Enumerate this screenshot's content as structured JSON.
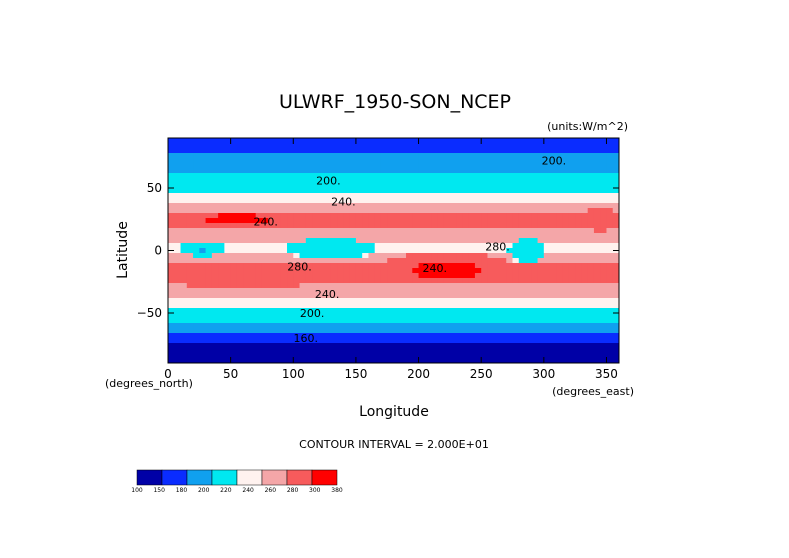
{
  "chart_data": {
    "type": "heatmap",
    "title": "ULWRF_1950-SON_NCEP",
    "units": "(units:W/m^2)",
    "xlabel": "Longitude",
    "ylabel": "Latitude",
    "x_units": "(degrees_east)",
    "y_units": "(degrees_north)",
    "xlim": [
      0,
      360
    ],
    "ylim": [
      -90,
      90
    ],
    "x_ticks": [
      {
        "value": 0,
        "label": "0"
      },
      {
        "value": 50,
        "label": "50"
      },
      {
        "value": 100,
        "label": "100"
      },
      {
        "value": 150,
        "label": "150"
      },
      {
        "value": 200,
        "label": "200"
      },
      {
        "value": 250,
        "label": "250"
      },
      {
        "value": 300,
        "label": "300"
      },
      {
        "value": 350,
        "label": "350"
      }
    ],
    "y_ticks": [
      {
        "value": 50,
        "label": "50"
      },
      {
        "value": 0,
        "label": "0"
      },
      {
        "value": -50,
        "label": "−50"
      }
    ],
    "contour_interval": "CONTOUR INTERVAL = 2.000E+01",
    "contour_labels": [
      {
        "lon": 128,
        "lat": 53,
        "text": "200."
      },
      {
        "lon": 308,
        "lat": 69,
        "text": "200."
      },
      {
        "lon": 140,
        "lat": 36,
        "text": "240."
      },
      {
        "lon": 78,
        "lat": 20,
        "text": "240."
      },
      {
        "lon": 105,
        "lat": -16,
        "text": "280."
      },
      {
        "lon": 213,
        "lat": -17,
        "text": "240."
      },
      {
        "lon": 263,
        "lat": 0,
        "text": "280."
      },
      {
        "lon": 127,
        "lat": -38,
        "text": "240."
      },
      {
        "lon": 115,
        "lat": -53,
        "text": "200."
      },
      {
        "lon": 110,
        "lat": -73,
        "text": "160."
      }
    ],
    "colorbar": {
      "ticks": [
        "100",
        "150",
        "180",
        "200",
        "220",
        "240",
        "260",
        "280",
        "300",
        "380"
      ],
      "colors": [
        "#0000a6",
        "#0a2cff",
        "#10a0ef",
        "#00e8f0",
        "#fff2ef",
        "#f4a6a8",
        "#f75b5c",
        "#ff0000"
      ]
    },
    "zonal_profile": [
      {
        "lat": -90,
        "value": 135
      },
      {
        "lat": -80,
        "value": 148
      },
      {
        "lat": -72,
        "value": 168
      },
      {
        "lat": -64,
        "value": 186
      },
      {
        "lat": -56,
        "value": 203
      },
      {
        "lat": -50,
        "value": 213
      },
      {
        "lat": -42,
        "value": 228
      },
      {
        "lat": -35,
        "value": 244
      },
      {
        "lat": -27,
        "value": 262
      },
      {
        "lat": -20,
        "value": 270
      },
      {
        "lat": -12,
        "value": 262
      },
      {
        "lat": -5,
        "value": 245
      },
      {
        "lat": 0,
        "value": 238
      },
      {
        "lat": 6,
        "value": 240
      },
      {
        "lat": 12,
        "value": 252
      },
      {
        "lat": 18,
        "value": 262
      },
      {
        "lat": 25,
        "value": 266
      },
      {
        "lat": 32,
        "value": 252
      },
      {
        "lat": 40,
        "value": 232
      },
      {
        "lat": 48,
        "value": 216
      },
      {
        "lat": 56,
        "value": 205
      },
      {
        "lat": 64,
        "value": 196
      },
      {
        "lat": 72,
        "value": 186
      },
      {
        "lat": 80,
        "value": 178
      },
      {
        "lat": 90,
        "value": 172
      }
    ],
    "regional_features": [
      {
        "lon": [
          10,
          45
        ],
        "lat": [
          8,
          -5
        ],
        "value": 198
      },
      {
        "lon": [
          95,
          165
        ],
        "lat": [
          10,
          -8
        ],
        "value": 200
      },
      {
        "lon": [
          272,
          300
        ],
        "lat": [
          10,
          -12
        ],
        "value": 200
      },
      {
        "lon": [
          165,
          280
        ],
        "lat": [
          -2,
          -28
        ],
        "value": 282
      },
      {
        "lon": [
          20,
          90
        ],
        "lat": [
          32,
          18
        ],
        "value": 285
      },
      {
        "lon": [
          330,
          360
        ],
        "lat": [
          35,
          15
        ],
        "value": 280
      },
      {
        "lon": [
          0,
          120
        ],
        "lat": [
          -18,
          -30
        ],
        "value": 280
      }
    ]
  }
}
